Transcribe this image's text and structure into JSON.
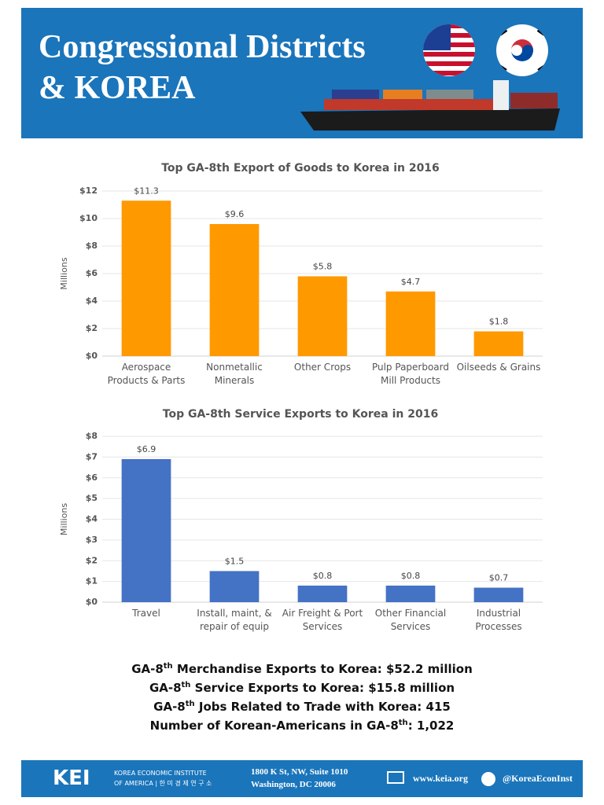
{
  "header": {
    "title_line1": "Congressional Districts",
    "title_line2": "& KOREA"
  },
  "chart_data": [
    {
      "type": "bar",
      "title": "Top GA-8th Export of Goods to Korea in 2016",
      "y_label": "Millions",
      "categories": [
        "Aerospace Products & Parts",
        "Nonmetallic Minerals",
        "Other Crops",
        "Pulp Paperboard Mill Products",
        "Oilseeds & Grains"
      ],
      "values": [
        11.3,
        9.6,
        5.8,
        4.7,
        1.8
      ],
      "value_labels": [
        "$11.3",
        "$9.6",
        "$5.8",
        "$4.7",
        "$1.8"
      ],
      "color": "#ff9900",
      "ylim": [
        0,
        12
      ],
      "yticks": [
        {
          "value": 0,
          "label": "$0"
        },
        {
          "value": 2,
          "label": "$2"
        },
        {
          "value": 4,
          "label": "$4"
        },
        {
          "value": 6,
          "label": "$6"
        },
        {
          "value": 8,
          "label": "$8"
        },
        {
          "value": 10,
          "label": "$10"
        },
        {
          "value": 12,
          "label": "$12"
        }
      ],
      "grid": true
    },
    {
      "type": "bar",
      "title": "Top GA-8th Service Exports to Korea in 2016",
      "y_label": "Millions",
      "categories": [
        "Travel",
        "Install, maint, & repair of equip",
        "Air Freight & Port Services",
        "Other Financial Services",
        "Industrial Processes"
      ],
      "values": [
        6.9,
        1.5,
        0.8,
        0.8,
        0.7
      ],
      "value_labels": [
        "$6.9",
        "$1.5",
        "$0.8",
        "$0.8",
        "$0.7"
      ],
      "color": "#4472c4",
      "ylim": [
        0,
        8
      ],
      "yticks": [
        {
          "value": 0,
          "label": "$0"
        },
        {
          "value": 1,
          "label": "$1"
        },
        {
          "value": 2,
          "label": "$2"
        },
        {
          "value": 3,
          "label": "$3"
        },
        {
          "value": 4,
          "label": "$4"
        },
        {
          "value": 5,
          "label": "$5"
        },
        {
          "value": 6,
          "label": "$6"
        },
        {
          "value": 7,
          "label": "$7"
        },
        {
          "value": 8,
          "label": "$8"
        }
      ],
      "grid": true
    }
  ],
  "stats": [
    {
      "prefix": "GA-8",
      "sup": "th",
      "text": " Merchandise Exports to Korea: $52.2 million"
    },
    {
      "prefix": "GA-8",
      "sup": "th",
      "text": " Service Exports to Korea: $15.8 million"
    },
    {
      "prefix": "GA-8",
      "sup": "th",
      "text": " Jobs Related to Trade with Korea: 415"
    },
    {
      "prefix": "Number of Korean-Americans in GA-8",
      "sup": "th",
      "text": ": 1,022"
    }
  ],
  "footer": {
    "logo": "KEI",
    "org_line1": "KOREA ECONOMIC INSTITUTE",
    "org_line2": "OF AMERICA | 한 미 경 제 연 구 소",
    "address_line1": "1800 K St, NW, Suite 1010",
    "address_line2": "Washington, DC 20006",
    "website": "www.keia.org",
    "twitter": "@KoreaEconInst"
  }
}
